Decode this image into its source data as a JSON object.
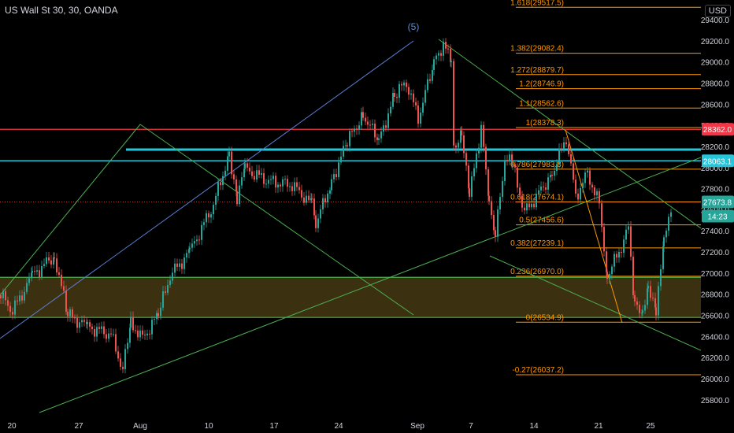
{
  "header": {
    "symbol_title": "US Wall St 30, 30, OANDA",
    "currency_button": "USD"
  },
  "colors": {
    "background": "#000000",
    "up_candle": "#26a69a",
    "down_candle": "#ef5350",
    "fib_line": "#ff9800",
    "green_line": "#4caf50",
    "cyan_line": "#26c6da",
    "red_line": "#f23645",
    "blue_line": "#5b7fd6",
    "zone_fill": "#6b5a1f"
  },
  "chart_data": {
    "type": "candlestick",
    "y_axis": {
      "min": 25700,
      "max": 29600,
      "ticks": [
        25800,
        26000,
        26200,
        26400,
        26600,
        26800,
        27000,
        27200,
        27400,
        27600,
        27800,
        28000,
        28200,
        28400,
        28600,
        28800,
        29000,
        29200,
        29400
      ]
    },
    "x_axis": {
      "tick_labels": [
        "20",
        "27",
        "Aug",
        "10",
        "17",
        "24",
        "Sep",
        "7",
        "14",
        "21",
        "25"
      ]
    },
    "price_labels": [
      {
        "value": 28362.0,
        "text": "28362.0",
        "color": "#f23645"
      },
      {
        "value": 28063.1,
        "text": "28063.1",
        "color": "#26c6da"
      },
      {
        "value": 27673.8,
        "text": "27673.8",
        "color": "#26a69a"
      },
      {
        "value": 27540,
        "text": "14:23",
        "color": "#26a69a"
      }
    ],
    "fib_levels": [
      {
        "label": "1.618(29517.5)",
        "value": 29517.5
      },
      {
        "label": "1.382(29082.4)",
        "value": 29082.4
      },
      {
        "label": "1.272(28879.7)",
        "value": 28879.7
      },
      {
        "label": "1.2(28746.9)",
        "value": 28746.9
      },
      {
        "label": "1.1(28562.6)",
        "value": 28562.6
      },
      {
        "label": "1(28378.3)",
        "value": 28378.3
      },
      {
        "label": "0.786(27983.8)",
        "value": 27983.8
      },
      {
        "label": "0.618(27674.1)",
        "value": 27674.1
      },
      {
        "label": "0.5(27456.6)",
        "value": 27456.6
      },
      {
        "label": "0.382(27239.1)",
        "value": 27239.1
      },
      {
        "label": "0.236(26970.0)",
        "value": 26970.0
      },
      {
        "label": "0(26534.9)",
        "value": 26534.9
      },
      {
        "label": "-0.27(26037.2)",
        "value": 26037.2
      }
    ],
    "wave_label": "(5)",
    "horizontal_lines": [
      {
        "name": "red-resistance",
        "value": 28362.0
      },
      {
        "name": "cyan-level",
        "value": 28063.1
      },
      {
        "name": "thick-cyan-level",
        "value": 28170
      }
    ],
    "zone": {
      "from": 26580,
      "to": 26960
    }
  }
}
